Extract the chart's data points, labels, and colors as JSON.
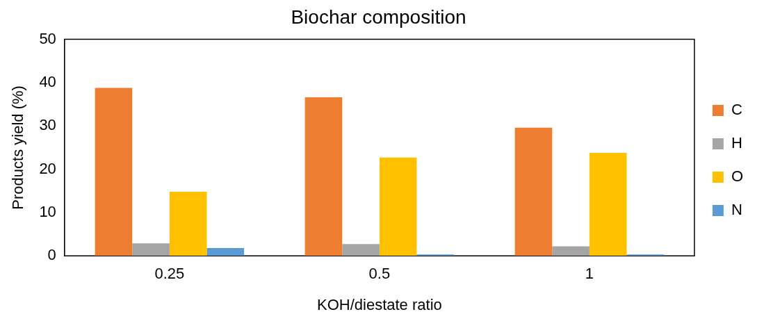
{
  "chart_data": {
    "type": "bar",
    "title": "Biochar composition",
    "xlabel": "KOH/diestate ratio",
    "ylabel": "Products yield (%)",
    "categories": [
      "0.25",
      "0.5",
      "1"
    ],
    "series": [
      {
        "name": "C",
        "color": "#ed7d31",
        "values": [
          38.8,
          36.6,
          29.6
        ]
      },
      {
        "name": "H",
        "color": "#a5a5a5",
        "values": [
          2.9,
          2.7,
          2.2
        ]
      },
      {
        "name": "O",
        "color": "#ffc000",
        "values": [
          14.8,
          22.7,
          23.8
        ]
      },
      {
        "name": "N",
        "color": "#5b9bd5",
        "values": [
          1.8,
          0.3,
          0.3
        ]
      }
    ],
    "ylim": [
      0,
      50
    ],
    "yticks": [
      0,
      10,
      20,
      30,
      40,
      50
    ],
    "grid": false,
    "legend": "right"
  }
}
